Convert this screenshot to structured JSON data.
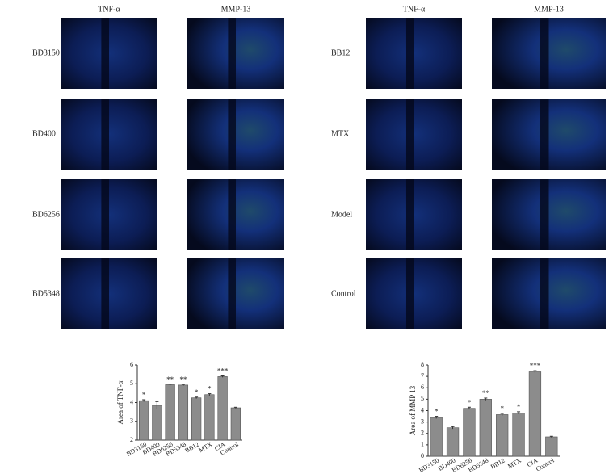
{
  "left_panel": {
    "columns": [
      "TNF-α",
      "MMP-13"
    ],
    "rows": [
      "BD3150",
      "BD400",
      "BD6256",
      "BD5348"
    ]
  },
  "right_panel": {
    "columns": [
      "TNF-α",
      "MMP-13"
    ],
    "rows": [
      "BB12",
      "MTX",
      "Model",
      "Control"
    ]
  },
  "chart_data": [
    {
      "type": "bar",
      "ylabel": "Area of TNF-α",
      "categories": [
        "BD3150",
        "BD400",
        "BD6256",
        "BD5348",
        "BB12",
        "MTX",
        "CIA",
        "Control"
      ],
      "values": [
        4.1,
        3.85,
        4.95,
        4.93,
        4.25,
        4.42,
        5.38,
        3.72
      ],
      "errors": [
        0.05,
        0.2,
        0.03,
        0.04,
        0.04,
        0.05,
        0.04,
        0.03
      ],
      "annotations": [
        "*",
        null,
        "**",
        "**",
        "*",
        "*",
        "***",
        null
      ],
      "color": "#8c8c8c",
      "ylim": [
        2,
        6
      ],
      "yticks": [
        2,
        3,
        4,
        5,
        6
      ]
    },
    {
      "type": "bar",
      "ylabel": "Area of MMP 13",
      "categories": [
        "BD3150",
        "BD400",
        "BD6256",
        "BD5348",
        "BB12",
        "MTX",
        "CIA",
        "Control"
      ],
      "values": [
        3.4,
        2.5,
        4.2,
        5.0,
        3.65,
        3.8,
        7.4,
        1.7
      ],
      "errors": [
        0.1,
        0.1,
        0.1,
        0.1,
        0.1,
        0.1,
        0.1,
        0.05
      ],
      "annotations": [
        "*",
        null,
        "*",
        "**",
        "*",
        "*",
        "***",
        null
      ],
      "color": "#8c8c8c",
      "ylim": [
        0,
        8
      ],
      "yticks": [
        0,
        1,
        2,
        3,
        4,
        5,
        6,
        7,
        8
      ]
    }
  ]
}
